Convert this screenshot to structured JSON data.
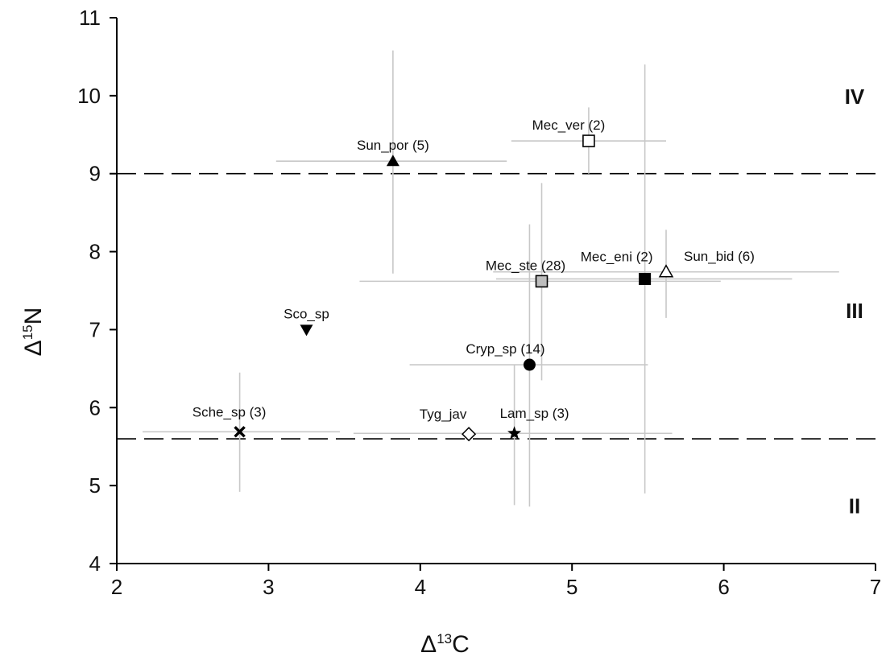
{
  "chart_data": {
    "type": "scatter",
    "xlabel": {
      "symbol": "Δ",
      "sup": "13",
      "element": "C"
    },
    "ylabel": {
      "symbol": "Δ",
      "sup": "15",
      "element": "N"
    },
    "xlim": [
      2,
      7
    ],
    "ylim": [
      4,
      11
    ],
    "xticks": [
      "2",
      "3",
      "4",
      "5",
      "6",
      "7"
    ],
    "yticks": [
      "4",
      "5",
      "6",
      "7",
      "8",
      "9",
      "10",
      "11"
    ],
    "reference_lines": [
      {
        "axis": "y",
        "value": 9.0,
        "style": "dashed"
      },
      {
        "axis": "y",
        "value": 5.6,
        "style": "dashed"
      }
    ],
    "zone_labels": [
      {
        "text": "IV",
        "y": 10.0
      },
      {
        "text": "III",
        "y": 7.25
      },
      {
        "text": "II",
        "y": 4.75
      }
    ],
    "points": [
      {
        "label": "Mec_ver (2)",
        "x": 5.11,
        "y": 9.42,
        "marker": "square-open",
        "xerr": [
          4.6,
          5.62
        ],
        "yerr": [
          9.0,
          9.85
        ]
      },
      {
        "label": "Sun_por (5)",
        "x": 3.82,
        "y": 9.16,
        "marker": "triangle-up-filled",
        "xerr": [
          3.05,
          4.57
        ],
        "yerr": [
          7.72,
          10.58
        ]
      },
      {
        "label": "Mec_ste (28)",
        "x": 4.8,
        "y": 7.62,
        "marker": "square-gray",
        "xerr": [
          3.6,
          5.98
        ],
        "yerr": [
          6.35,
          8.88
        ]
      },
      {
        "label": "Mec_eni (2)",
        "x": 5.48,
        "y": 7.65,
        "marker": "square-filled",
        "xerr": [
          4.5,
          6.45
        ],
        "yerr": [
          4.9,
          10.4
        ]
      },
      {
        "label": "Sun_bid (6)",
        "x": 5.62,
        "y": 7.74,
        "marker": "triangle-up-open",
        "xerr": [
          4.48,
          6.76
        ],
        "yerr": [
          7.15,
          8.28
        ]
      },
      {
        "label": "Sco_sp",
        "x": 3.25,
        "y": 7.0,
        "marker": "triangle-down-filled"
      },
      {
        "label": "Cryp_sp (14)",
        "x": 4.72,
        "y": 6.55,
        "marker": "circle-filled",
        "xerr": [
          3.93,
          5.5
        ],
        "yerr": [
          4.73,
          8.35
        ]
      },
      {
        "label": "Sche_sp (3)",
        "x": 2.81,
        "y": 5.69,
        "marker": "x",
        "xerr": [
          2.17,
          3.47
        ],
        "yerr": [
          4.92,
          6.45
        ]
      },
      {
        "label": "Tyg_jav",
        "x": 4.32,
        "y": 5.66,
        "marker": "diamond-open"
      },
      {
        "label": "Lam_sp (3)",
        "x": 4.62,
        "y": 5.67,
        "marker": "star-filled",
        "xerr": [
          3.56,
          5.66
        ],
        "yerr": [
          4.75,
          6.55
        ]
      }
    ]
  }
}
